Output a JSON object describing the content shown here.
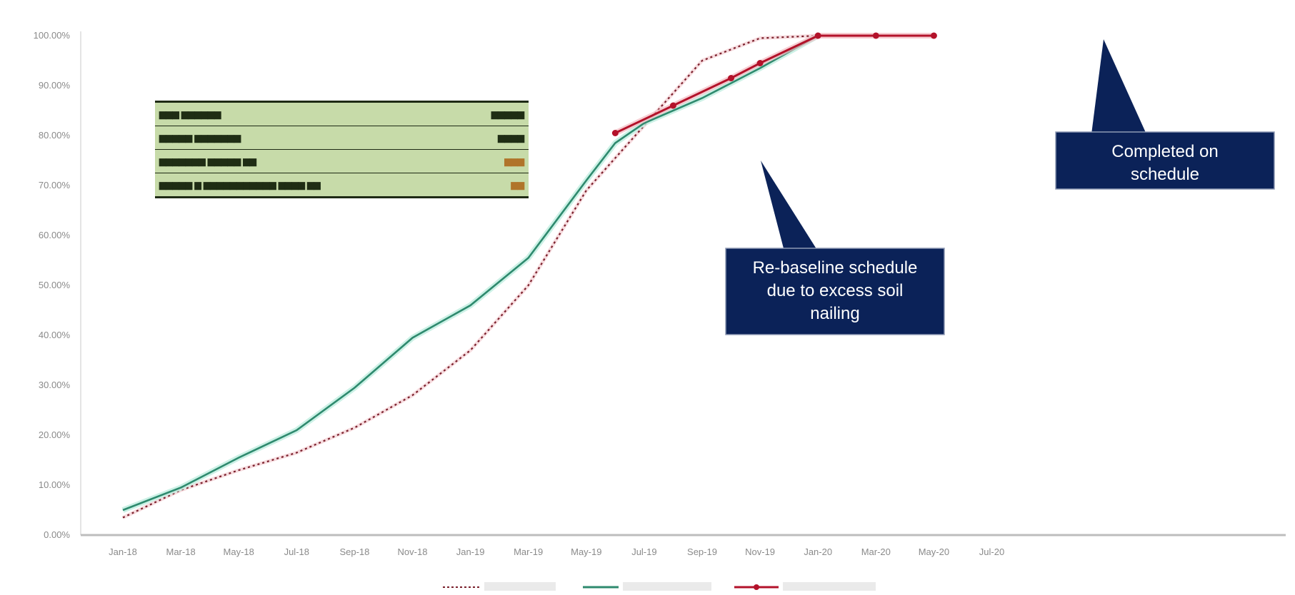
{
  "colors": {
    "background": "#ffffff",
    "planned": "#7a1f2b",
    "baseline": "#2e8a6e",
    "baseline_glow": "#bfeee0",
    "actual": "#b3122a",
    "actual_glow": "#f3b9c0",
    "callout_fill": "#0b2258",
    "table_fill": "#c7dba9",
    "axis": "#bdbdbd"
  },
  "chart_data": {
    "type": "line",
    "ylim": [
      0,
      100
    ],
    "y_ticks": [
      "0.00%",
      "10.00%",
      "20.00%",
      "30.00%",
      "40.00%",
      "50.00%",
      "60.00%",
      "70.00%",
      "80.00%",
      "90.00%",
      "100.00%"
    ],
    "categories": [
      "Jan-18",
      "Mar-18",
      "May-18",
      "Jul-18",
      "Sep-18",
      "Nov-18",
      "Jan-19",
      "Mar-19",
      "May-19",
      "Jul-19",
      "Sep-19",
      "Nov-19",
      "Jan-20",
      "Mar-20",
      "May-20",
      "Jul-20"
    ],
    "series": [
      {
        "key": "planned",
        "style": "dashed",
        "points": [
          [
            0,
            3.5
          ],
          [
            1,
            9
          ],
          [
            2,
            13
          ],
          [
            3,
            16.5
          ],
          [
            4,
            21.5
          ],
          [
            5,
            28
          ],
          [
            6,
            37
          ],
          [
            7,
            50
          ],
          [
            8,
            69
          ],
          [
            9,
            82
          ],
          [
            10,
            95
          ],
          [
            11,
            99.5
          ],
          [
            12,
            100
          ],
          [
            13,
            100
          ]
        ]
      },
      {
        "key": "baseline",
        "style": "solid",
        "points": [
          [
            0,
            5
          ],
          [
            1,
            9.5
          ],
          [
            2,
            15.5
          ],
          [
            3,
            21
          ],
          [
            4,
            29.5
          ],
          [
            5,
            39.5
          ],
          [
            6,
            46
          ],
          [
            7,
            55.5
          ],
          [
            8,
            71
          ],
          [
            8.5,
            78.5
          ],
          [
            9,
            82.5
          ],
          [
            10,
            87.5
          ],
          [
            11,
            93.5
          ],
          [
            12,
            100
          ]
        ]
      },
      {
        "key": "actual",
        "style": "solid-markers",
        "points": [
          [
            8.5,
            80.5
          ],
          [
            9.5,
            86
          ],
          [
            10.5,
            91.5
          ],
          [
            11,
            94.5
          ],
          [
            12,
            100
          ],
          [
            13,
            100
          ],
          [
            14,
            100
          ]
        ]
      }
    ],
    "callouts": [
      {
        "lines": [
          "Re-baseline schedule",
          "due to excess soil",
          "nailing"
        ]
      },
      {
        "lines": [
          "Completed on",
          "schedule"
        ]
      }
    ]
  }
}
